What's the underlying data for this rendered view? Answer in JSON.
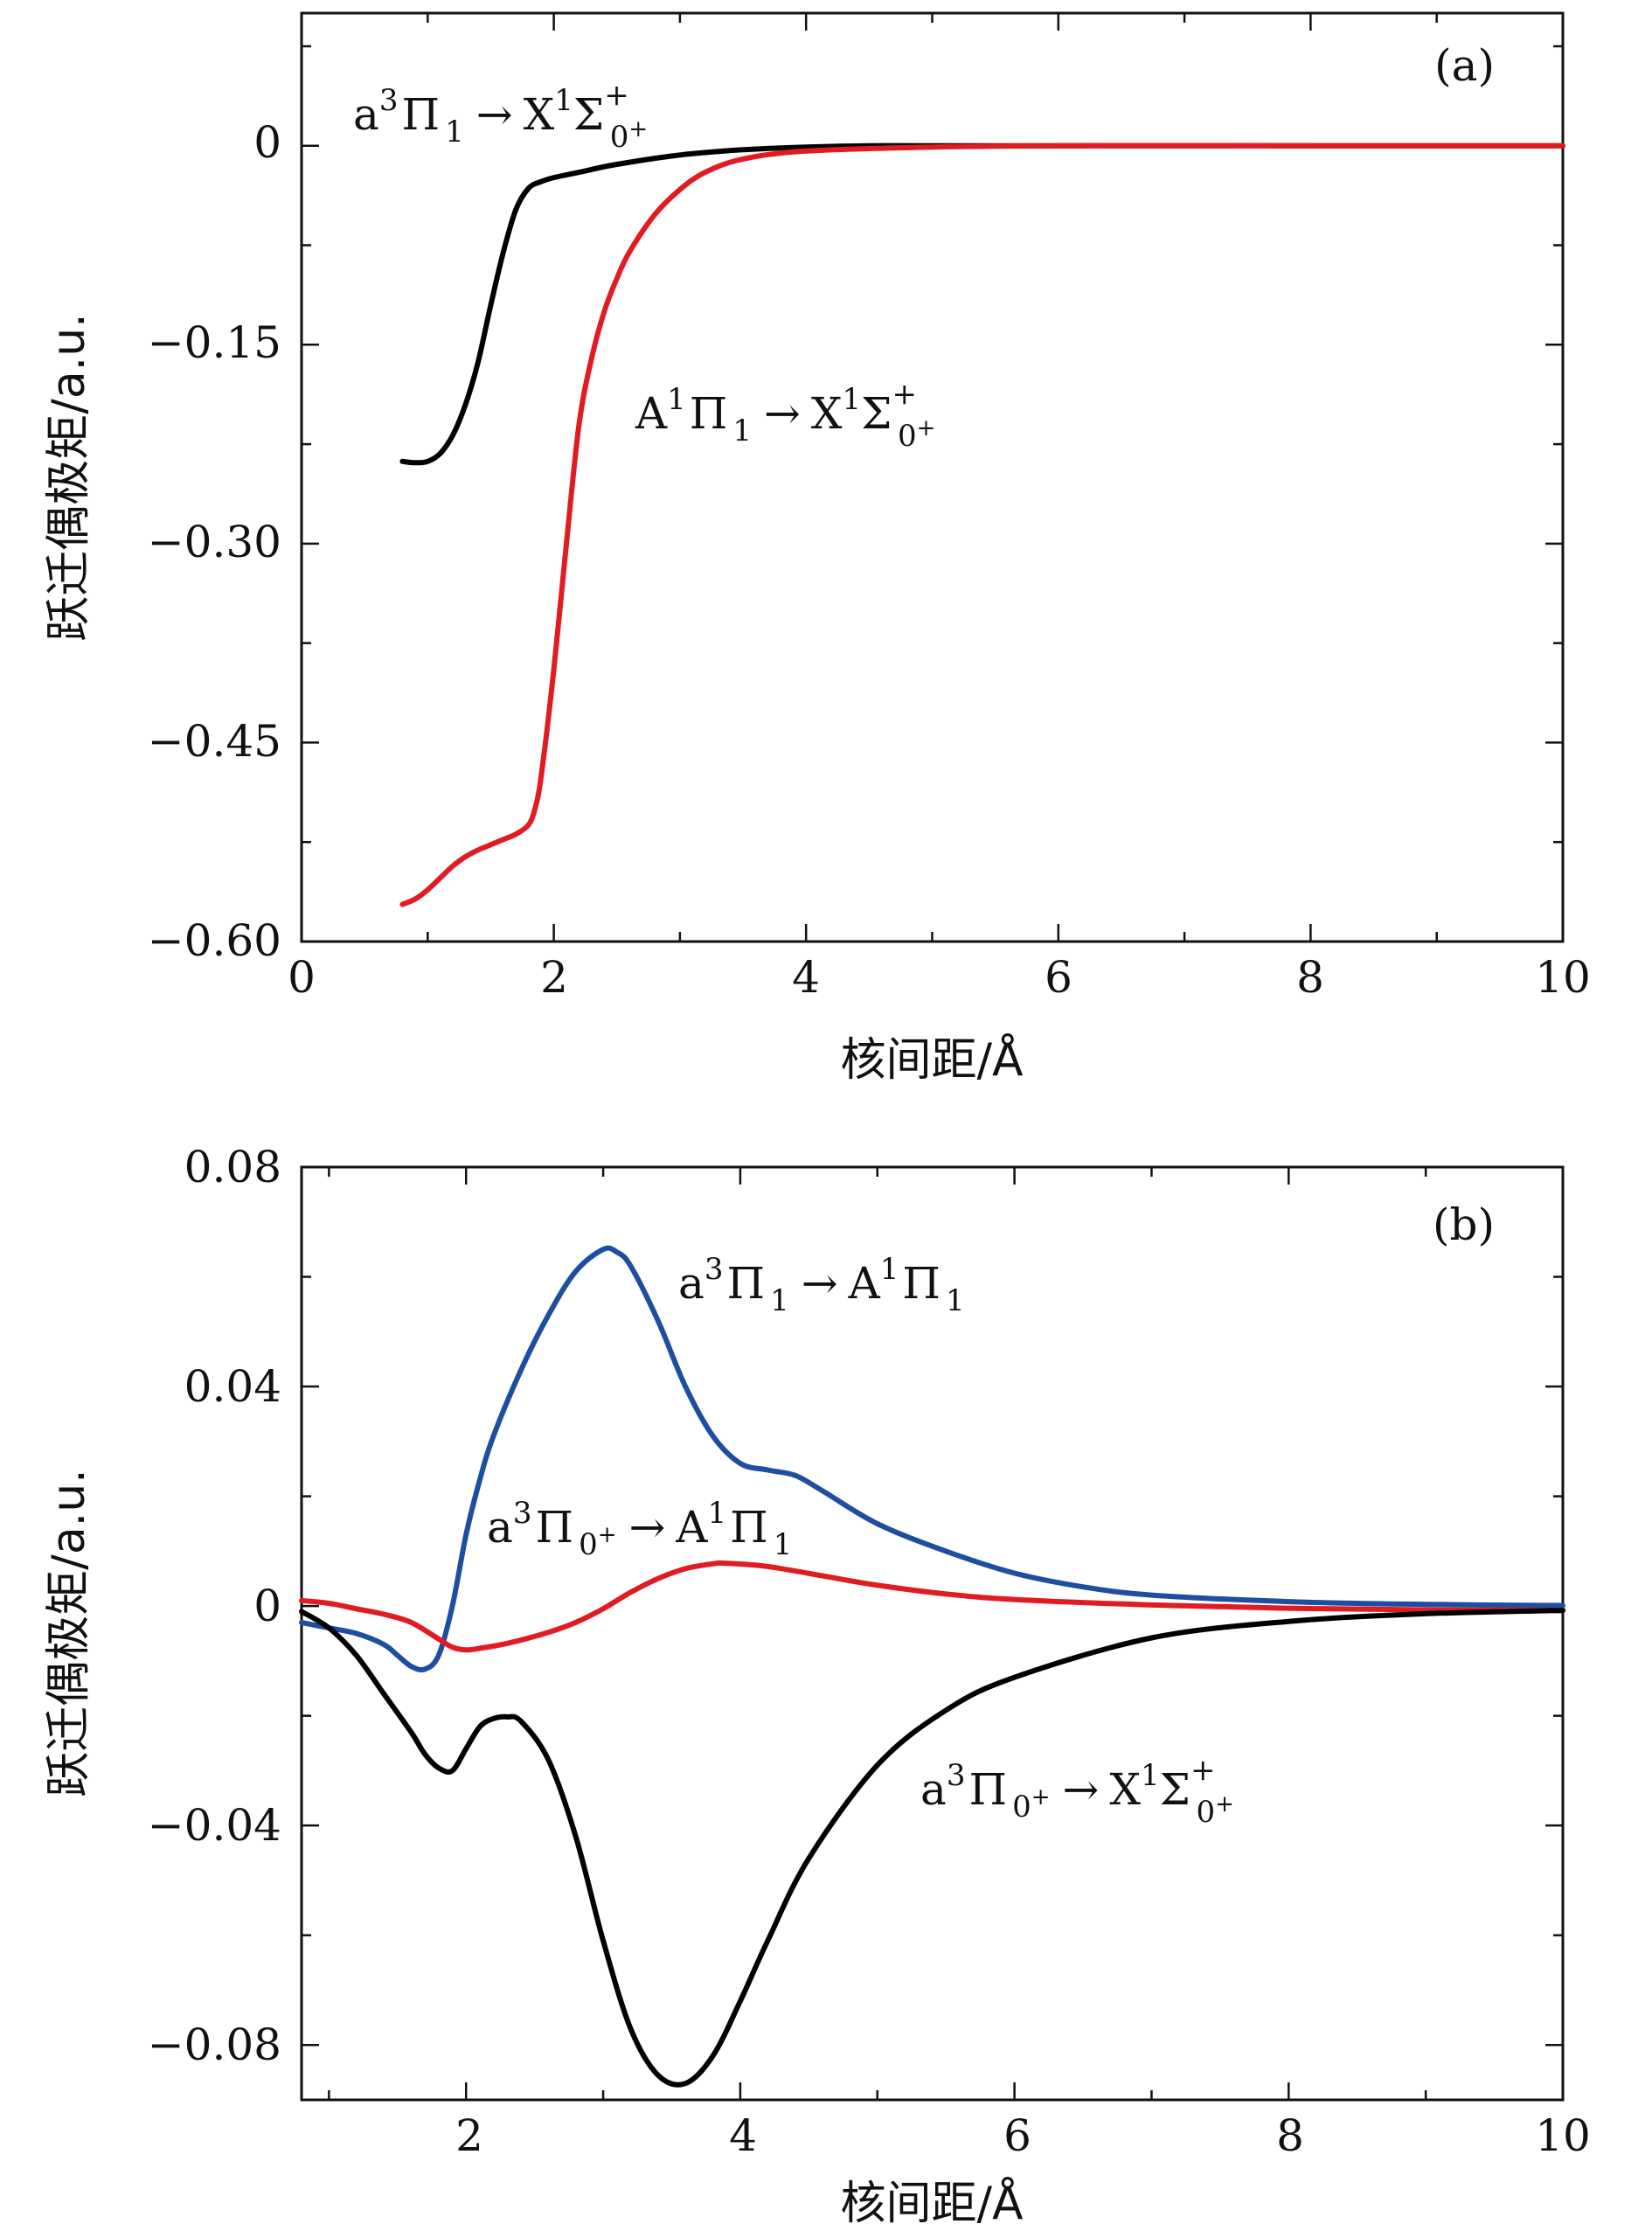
{
  "chart_data": [
    {
      "type": "line",
      "panel": "(a)",
      "xlabel": "核间距/Å",
      "ylabel": "跃迁偶极矩/a.u.",
      "xlim": [
        0,
        10
      ],
      "ylim": [
        -0.6,
        0.1
      ],
      "x_ticks": [
        "0",
        "2",
        "4",
        "6",
        "8",
        "10"
      ],
      "y_ticks": [
        "0",
        "−0.15",
        "−0.30",
        "−0.45",
        "−0.60"
      ],
      "grid": false,
      "series": [
        {
          "name": "a³Π₁ → X¹Σ⁺₀⁺",
          "color": "#000000",
          "x": [
            0.8,
            0.9,
            1.0,
            1.1,
            1.2,
            1.3,
            1.4,
            1.5,
            1.6,
            1.7,
            1.8,
            1.9,
            2.0,
            2.2,
            2.5,
            3.0,
            3.5,
            4.0,
            4.5,
            5.0,
            6.0,
            8.0,
            10.0
          ],
          "y": [
            -0.238,
            -0.239,
            -0.238,
            -0.232,
            -0.218,
            -0.195,
            -0.163,
            -0.12,
            -0.08,
            -0.048,
            -0.032,
            -0.027,
            -0.024,
            -0.02,
            -0.014,
            -0.007,
            -0.003,
            -0.001,
            0.0,
            0.0,
            0.0,
            0.0,
            0.0
          ]
        },
        {
          "name": "A¹Π₁ → X¹Σ⁺₀⁺",
          "color": "#e11b22",
          "x": [
            0.8,
            0.9,
            1.0,
            1.1,
            1.2,
            1.3,
            1.4,
            1.5,
            1.6,
            1.7,
            1.8,
            1.85,
            1.9,
            2.0,
            2.1,
            2.2,
            2.3,
            2.4,
            2.5,
            2.6,
            2.8,
            3.0,
            3.2,
            3.5,
            4.0,
            5.0,
            6.0,
            8.0,
            10.0
          ],
          "y": [
            -0.572,
            -0.568,
            -0.561,
            -0.552,
            -0.543,
            -0.536,
            -0.531,
            -0.527,
            -0.523,
            -0.519,
            -0.512,
            -0.5,
            -0.475,
            -0.395,
            -0.3,
            -0.21,
            -0.16,
            -0.125,
            -0.1,
            -0.08,
            -0.052,
            -0.033,
            -0.02,
            -0.01,
            -0.004,
            -0.001,
            0.0,
            0.0,
            0.0
          ]
        }
      ],
      "annotations": [
        {
          "base": "a",
          "sup1": "3",
          "sym": "Π",
          "sub1": "1",
          "arrow": "→",
          "base2": "X",
          "sup2": "1",
          "sym2": "Σ",
          "sup3": "+",
          "sub2": "0",
          "sub2sup": "+"
        },
        {
          "base": "A",
          "sup1": "1",
          "sym": "Π",
          "sub1": "1",
          "arrow": "→",
          "base2": "X",
          "sup2": "1",
          "sym2": "Σ",
          "sup3": "+",
          "sub2": "0",
          "sub2sup": "+"
        }
      ]
    },
    {
      "type": "line",
      "panel": "(b)",
      "xlabel": "核间距/Å",
      "ylabel": "跃迁偶极矩/a.u.",
      "xlim": [
        0.8,
        10
      ],
      "ylim": [
        -0.09,
        0.08
      ],
      "x_ticks": [
        "2",
        "4",
        "6",
        "8",
        "10"
      ],
      "y_ticks": [
        "0.08",
        "0.04",
        "0",
        "−0.04",
        "−0.08"
      ],
      "grid": false,
      "series": [
        {
          "name": "a³Π₁ → A¹Π₁",
          "color": "#1f4ea1",
          "x": [
            0.8,
            1.0,
            1.2,
            1.4,
            1.5,
            1.6,
            1.7,
            1.8,
            1.9,
            2.0,
            2.1,
            2.2,
            2.4,
            2.6,
            2.8,
            3.0,
            3.1,
            3.2,
            3.4,
            3.6,
            3.8,
            4.0,
            4.2,
            4.4,
            4.6,
            5.0,
            5.5,
            6.0,
            6.5,
            7.0,
            8.0,
            9.0,
            10.0
          ],
          "y": [
            -0.003,
            -0.004,
            -0.005,
            -0.007,
            -0.009,
            -0.011,
            -0.0115,
            -0.009,
            0.0,
            0.013,
            0.023,
            0.031,
            0.043,
            0.053,
            0.061,
            0.065,
            0.0645,
            0.062,
            0.052,
            0.04,
            0.031,
            0.026,
            0.0248,
            0.0238,
            0.021,
            0.015,
            0.01,
            0.006,
            0.0035,
            0.002,
            0.0008,
            0.0003,
            0.0001
          ]
        },
        {
          "name": "a³Π₀⁺ → A¹Π₁",
          "color": "#e11b22",
          "x": [
            0.8,
            1.0,
            1.2,
            1.4,
            1.6,
            1.8,
            1.9,
            2.0,
            2.1,
            2.3,
            2.6,
            2.8,
            3.0,
            3.2,
            3.4,
            3.6,
            3.8,
            3.9,
            4.2,
            4.6,
            5.0,
            5.5,
            6.0,
            7.0,
            8.0,
            9.0,
            10.0
          ],
          "y": [
            0.001,
            0.0005,
            -0.0005,
            -0.0015,
            -0.003,
            -0.006,
            -0.0075,
            -0.008,
            -0.0077,
            -0.0068,
            -0.0048,
            -0.003,
            -0.0005,
            0.0025,
            0.005,
            0.0068,
            0.0077,
            0.0078,
            0.0072,
            0.0055,
            0.0038,
            0.0022,
            0.0012,
            0.0002,
            -0.0004,
            -0.0007,
            -0.0008
          ]
        },
        {
          "name": "a³Π₀⁺ → X¹Σ⁺₀⁺",
          "color": "#000000",
          "x": [
            0.8,
            1.0,
            1.2,
            1.4,
            1.6,
            1.7,
            1.8,
            1.9,
            2.0,
            2.1,
            2.2,
            2.3,
            2.4,
            2.6,
            2.8,
            3.0,
            3.2,
            3.4,
            3.6,
            3.8,
            4.0,
            4.2,
            4.5,
            5.0,
            5.5,
            6.0,
            7.0,
            8.0,
            9.0,
            10.0
          ],
          "y": [
            -0.001,
            -0.004,
            -0.009,
            -0.016,
            -0.023,
            -0.027,
            -0.0295,
            -0.03,
            -0.026,
            -0.022,
            -0.0205,
            -0.0202,
            -0.021,
            -0.028,
            -0.042,
            -0.061,
            -0.077,
            -0.0855,
            -0.087,
            -0.082,
            -0.072,
            -0.061,
            -0.046,
            -0.029,
            -0.019,
            -0.013,
            -0.0058,
            -0.0028,
            -0.0014,
            -0.0008
          ]
        }
      ],
      "annotations": [
        {
          "base": "a",
          "sup1": "3",
          "sym": "Π",
          "sub1": "1",
          "arrow": "→",
          "base2": "A",
          "sup2": "1",
          "sym2": "Π",
          "sub2": "1"
        },
        {
          "base": "a",
          "sup1": "3",
          "sym": "Π",
          "sub1": "0",
          "sub1sup": "+",
          "arrow": "→",
          "base2": "A",
          "sup2": "1",
          "sym2": "Π",
          "sub2": "1"
        },
        {
          "base": "a",
          "sup1": "3",
          "sym": "Π",
          "sub1": "0",
          "sub1sup": "+",
          "arrow": "→",
          "base2": "X",
          "sup2": "1",
          "sym2": "Σ",
          "sup3": "+",
          "sub2": "0",
          "sub2sup": "+"
        }
      ]
    }
  ]
}
